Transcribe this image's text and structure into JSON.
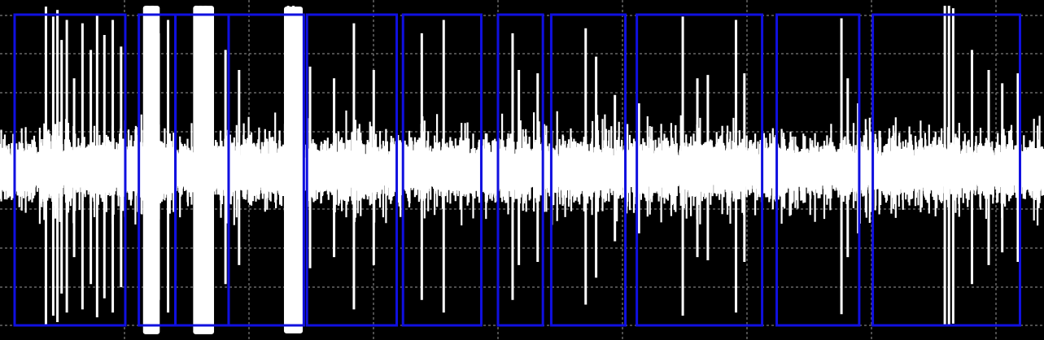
{
  "chart_data": {
    "type": "line",
    "title": "",
    "xlabel": "",
    "ylabel": "",
    "ylim": [
      -1,
      1
    ],
    "grid": true,
    "legend": "none",
    "colors": {
      "background": "#000000",
      "signal": "#ffffff",
      "grid": "#9a9a9a",
      "segment_box": "#1010e0"
    },
    "series": [
      {
        "baseline_amplitude": 0.08,
        "noise_amplitude": 0.22,
        "spikes": [
          {
            "x": 0.044,
            "y": 0.98
          },
          {
            "x": 0.051,
            "y": 0.92
          },
          {
            "x": 0.055,
            "y": 0.96
          },
          {
            "x": 0.059,
            "y": 0.78
          },
          {
            "x": 0.064,
            "y": 0.9
          },
          {
            "x": 0.071,
            "y": 0.55
          },
          {
            "x": 0.079,
            "y": 0.88
          },
          {
            "x": 0.087,
            "y": 0.72
          },
          {
            "x": 0.093,
            "y": 0.93
          },
          {
            "x": 0.1,
            "y": 0.81
          },
          {
            "x": 0.108,
            "y": 0.9
          },
          {
            "x": 0.116,
            "y": 0.74
          },
          {
            "x": 0.141,
            "y": 1.0
          },
          {
            "x": 0.146,
            "y": 1.0
          },
          {
            "x": 0.152,
            "y": 0.82
          },
          {
            "x": 0.161,
            "y": 0.9
          },
          {
            "x": 0.168,
            "y": 0.7
          },
          {
            "x": 0.188,
            "y": 1.0
          },
          {
            "x": 0.192,
            "y": 1.0
          },
          {
            "x": 0.197,
            "y": 1.0
          },
          {
            "x": 0.203,
            "y": 0.9
          },
          {
            "x": 0.216,
            "y": 0.72
          },
          {
            "x": 0.229,
            "y": 0.6
          },
          {
            "x": 0.276,
            "y": 1.0
          },
          {
            "x": 0.281,
            "y": 1.0
          },
          {
            "x": 0.286,
            "y": 0.95
          },
          {
            "x": 0.297,
            "y": 0.62
          },
          {
            "x": 0.32,
            "y": 0.55
          },
          {
            "x": 0.339,
            "y": 0.88
          },
          {
            "x": 0.358,
            "y": 0.6
          },
          {
            "x": 0.404,
            "y": 0.82
          },
          {
            "x": 0.425,
            "y": 0.9
          },
          {
            "x": 0.491,
            "y": 0.82
          },
          {
            "x": 0.497,
            "y": 0.6
          },
          {
            "x": 0.515,
            "y": 0.58
          },
          {
            "x": 0.561,
            "y": 0.85
          },
          {
            "x": 0.571,
            "y": 0.68
          },
          {
            "x": 0.589,
            "y": 0.45
          },
          {
            "x": 0.612,
            "y": 0.4
          },
          {
            "x": 0.654,
            "y": 0.92
          },
          {
            "x": 0.668,
            "y": 0.55
          },
          {
            "x": 0.678,
            "y": 0.57
          },
          {
            "x": 0.705,
            "y": 0.9
          },
          {
            "x": 0.713,
            "y": 0.58
          },
          {
            "x": 0.806,
            "y": 0.91
          },
          {
            "x": 0.812,
            "y": 0.55
          },
          {
            "x": 0.822,
            "y": 0.4
          },
          {
            "x": 0.905,
            "y": 1.0
          },
          {
            "x": 0.909,
            "y": 1.0
          },
          {
            "x": 0.913,
            "y": 0.97
          },
          {
            "x": 0.931,
            "y": 0.72
          },
          {
            "x": 0.947,
            "y": 0.6
          },
          {
            "x": 0.96,
            "y": 0.52
          },
          {
            "x": 0.975,
            "y": 0.58
          }
        ],
        "dense_bursts": [
          {
            "x_start": 0.137,
            "x_end": 0.153,
            "y": 1.0
          },
          {
            "x_start": 0.185,
            "x_end": 0.205,
            "y": 1.0
          },
          {
            "x_start": 0.272,
            "x_end": 0.29,
            "y": 0.98
          }
        ]
      }
    ],
    "segments": [
      {
        "x_start": 0.014,
        "x_end": 0.12
      },
      {
        "x_start": 0.133,
        "x_end": 0.168
      },
      {
        "x_start": 0.168,
        "x_end": 0.219
      },
      {
        "x_start": 0.219,
        "x_end": 0.291
      },
      {
        "x_start": 0.294,
        "x_end": 0.38
      },
      {
        "x_start": 0.386,
        "x_end": 0.461
      },
      {
        "x_start": 0.477,
        "x_end": 0.52
      },
      {
        "x_start": 0.528,
        "x_end": 0.599
      },
      {
        "x_start": 0.61,
        "x_end": 0.73
      },
      {
        "x_start": 0.744,
        "x_end": 0.823
      },
      {
        "x_start": 0.836,
        "x_end": 0.977
      }
    ]
  }
}
